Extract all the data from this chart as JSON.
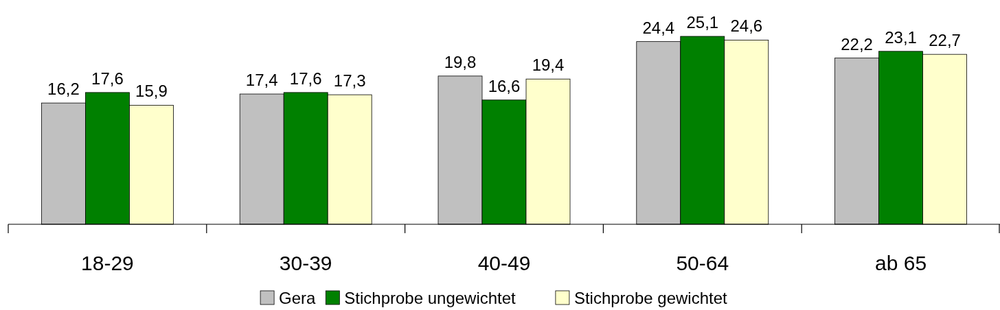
{
  "chart_data": {
    "type": "bar",
    "categories": [
      "18-29",
      "30-39",
      "40-49",
      "50-64",
      "ab 65"
    ],
    "series": [
      {
        "name": "Gera",
        "color": "#c0c0c0",
        "values": [
          16.2,
          17.4,
          19.8,
          24.4,
          22.2
        ],
        "value_labels": [
          "16,2",
          "17,4",
          "19,8",
          "24,4",
          "22,2"
        ]
      },
      {
        "name": "Stichprobe ungewichtet",
        "color": "#008000",
        "values": [
          17.6,
          17.6,
          16.6,
          25.1,
          23.1
        ],
        "value_labels": [
          "17,6",
          "17,6",
          "16,6",
          "25,1",
          "23,1"
        ]
      },
      {
        "name": "Stichprobe gewichtet",
        "color": "#ffffcc",
        "values": [
          15.9,
          17.3,
          19.4,
          24.6,
          22.7
        ],
        "value_labels": [
          "15,9",
          "17,3",
          "19,4",
          "24,6",
          "22,7"
        ]
      }
    ],
    "legend": "bottom"
  }
}
